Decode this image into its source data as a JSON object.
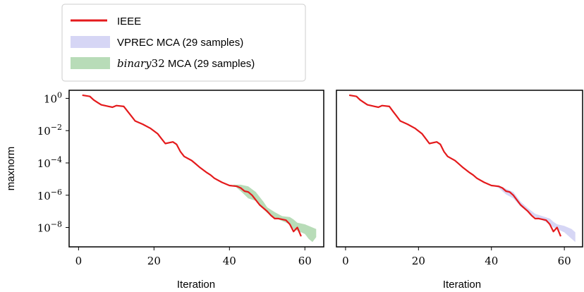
{
  "legend": {
    "entries": [
      {
        "label": "IEEE",
        "kind": "line",
        "color": "#e41a1c"
      },
      {
        "label": "VPREC MCA (29 samples)",
        "kind": "band",
        "color": "#d6d6f5"
      },
      {
        "label_math": "binary",
        "label_num": "32",
        "label_rest": " MCA (29 samples)",
        "kind": "band",
        "color": "#b8dcb8"
      }
    ]
  },
  "chart_data": [
    {
      "type": "line",
      "xlabel": "Iteration",
      "ylabel": "maxnorm",
      "yscale": "log",
      "xlim": [
        -2.5,
        65
      ],
      "ylim_exp": [
        -9.2,
        0.5
      ],
      "xticks": [
        "0",
        "20",
        "40",
        "60"
      ],
      "xtick_values": [
        0,
        20,
        40,
        60
      ],
      "ytick_bases": [
        "10",
        "10",
        "10",
        "10",
        "10"
      ],
      "ytick_exponents": [
        "0",
        "−2",
        "−4",
        "−6",
        "−8"
      ],
      "ytick_values": [
        0,
        -2,
        -4,
        -6,
        -8
      ],
      "series": [
        {
          "name": "IEEE",
          "color": "#e41a1c",
          "x": [
            1,
            3,
            4,
            5,
            6,
            8,
            9,
            10,
            12,
            13,
            14,
            15,
            17,
            19,
            21,
            22,
            23,
            25,
            26,
            27,
            28,
            30,
            31,
            32,
            34,
            35,
            36,
            38,
            40,
            42,
            43,
            44,
            45,
            46,
            48,
            50,
            51,
            52,
            53,
            55,
            56,
            57,
            58,
            59
          ],
          "y_exp": [
            0.2,
            0.12,
            -0.1,
            -0.25,
            -0.4,
            -0.5,
            -0.55,
            -0.45,
            -0.5,
            -0.8,
            -1.1,
            -1.4,
            -1.6,
            -1.85,
            -2.2,
            -2.5,
            -2.8,
            -2.7,
            -2.85,
            -3.3,
            -3.6,
            -3.85,
            -4.05,
            -4.25,
            -4.6,
            -4.75,
            -4.95,
            -5.2,
            -5.4,
            -5.45,
            -5.55,
            -5.75,
            -5.8,
            -6.0,
            -6.6,
            -7.0,
            -7.25,
            -7.45,
            -7.45,
            -7.55,
            -7.8,
            -8.25,
            -8.0,
            -8.55
          ]
        },
        {
          "name": "binary32 MCA (29 samples)",
          "kind": "band",
          "color": "#b8dcb8",
          "x": [
            41,
            43,
            45,
            47,
            49,
            50,
            52,
            54,
            56,
            57,
            58,
            60,
            61,
            62,
            63
          ],
          "y_exp_low": [
            -5.35,
            -5.75,
            -6.2,
            -6.35,
            -6.85,
            -7.1,
            -7.4,
            -7.6,
            -7.8,
            -8.1,
            -8.2,
            -8.4,
            -8.7,
            -8.9,
            -8.6
          ],
          "y_exp_high": [
            -5.35,
            -5.35,
            -5.45,
            -5.8,
            -6.4,
            -6.75,
            -7.05,
            -7.3,
            -7.35,
            -7.5,
            -7.7,
            -7.8,
            -7.9,
            -8.0,
            -8.1
          ]
        }
      ]
    },
    {
      "type": "line",
      "xlabel": "Iteration",
      "ylabel": "",
      "yscale": "log",
      "xlim": [
        -2.5,
        65
      ],
      "ylim_exp": [
        -9.2,
        0.5
      ],
      "xticks": [
        "0",
        "20",
        "40",
        "60"
      ],
      "xtick_values": [
        0,
        20,
        40,
        60
      ],
      "series": [
        {
          "name": "IEEE",
          "color": "#e41a1c",
          "x": [
            1,
            3,
            4,
            5,
            6,
            8,
            9,
            10,
            12,
            13,
            14,
            15,
            17,
            19,
            21,
            22,
            23,
            25,
            26,
            27,
            28,
            30,
            31,
            32,
            34,
            35,
            36,
            38,
            40,
            42,
            43,
            44,
            45,
            46,
            48,
            50,
            51,
            52,
            53,
            55,
            56,
            57,
            58,
            59
          ],
          "y_exp": [
            0.2,
            0.12,
            -0.1,
            -0.25,
            -0.4,
            -0.5,
            -0.55,
            -0.45,
            -0.5,
            -0.8,
            -1.1,
            -1.4,
            -1.6,
            -1.85,
            -2.2,
            -2.5,
            -2.8,
            -2.7,
            -2.85,
            -3.3,
            -3.6,
            -3.85,
            -4.05,
            -4.25,
            -4.6,
            -4.75,
            -4.95,
            -5.2,
            -5.4,
            -5.45,
            -5.55,
            -5.75,
            -5.8,
            -6.0,
            -6.6,
            -7.0,
            -7.25,
            -7.45,
            -7.45,
            -7.55,
            -7.8,
            -8.25,
            -8.0,
            -8.55
          ]
        },
        {
          "name": "VPREC MCA (29 samples)",
          "kind": "band",
          "color": "#d6d6f5",
          "x": [
            40,
            42,
            44,
            46,
            48,
            50,
            52,
            54,
            56,
            57,
            58,
            60,
            61,
            62,
            63
          ],
          "y_exp_low": [
            -5.4,
            -5.55,
            -5.95,
            -6.2,
            -6.7,
            -7.05,
            -7.35,
            -7.55,
            -7.8,
            -8.0,
            -8.1,
            -8.3,
            -8.5,
            -8.7,
            -8.9
          ],
          "y_exp_high": [
            -5.4,
            -5.4,
            -5.6,
            -5.8,
            -6.4,
            -6.8,
            -7.15,
            -7.3,
            -7.45,
            -7.65,
            -7.8,
            -7.9,
            -8.0,
            -8.1,
            -8.3
          ]
        }
      ]
    }
  ]
}
